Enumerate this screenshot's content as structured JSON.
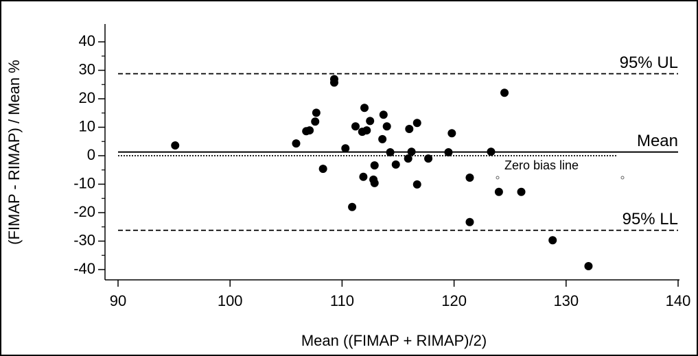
{
  "chart_data": {
    "type": "scatter",
    "x_label": "Mean ((FIMAP + RIMAP)/2)",
    "y_label": "(FIMAP - RIMAP) / Mean %",
    "xlim": [
      90,
      140
    ],
    "xticks": [
      90,
      100,
      110,
      120,
      130,
      140
    ],
    "ylim": [
      -40,
      40
    ],
    "yticks": [
      -40,
      -30,
      -20,
      -10,
      0,
      10,
      20,
      30,
      40
    ],
    "color": "#000000",
    "series": [
      {
        "x": [
          95.1,
          105.9,
          106.8,
          107.1,
          107.6,
          107.7,
          108.3,
          109.3,
          109.3,
          110.3,
          110.9,
          111.2,
          111.8,
          112.0,
          111.9,
          112.2,
          112.5,
          112.8,
          112.9,
          112.9,
          113.6,
          113.7,
          114.0,
          114.3,
          114.8,
          115.9,
          116.0,
          116.2,
          116.7,
          116.7,
          117.7,
          119.5,
          119.8,
          121.4,
          121.4,
          123.3,
          124.0,
          124.5,
          126.0,
          128.8,
          132.0
        ],
        "values": [
          3.6,
          4.3,
          8.6,
          8.9,
          12.0,
          15.1,
          -4.6,
          26.9,
          25.7,
          2.6,
          -18.0,
          10.3,
          8.4,
          16.8,
          -7.4,
          8.9,
          12.2,
          -8.4,
          -9.6,
          -3.4,
          5.8,
          14.4,
          10.3,
          1.2,
          -3.1,
          -1.0,
          9.4,
          1.4,
          11.5,
          -10.1,
          -1.0,
          1.2,
          7.9,
          -7.7,
          -23.3,
          1.4,
          -12.7,
          22.1,
          -12.7,
          -29.7,
          -38.8
        ]
      }
    ],
    "reference_lines": [
      {
        "label": "95% UL",
        "value": 28.8,
        "style": "dashed"
      },
      {
        "label": "Mean",
        "value": 1.3,
        "style": "solid"
      },
      {
        "label": "Zero bias line",
        "value": 0,
        "style": "dotted"
      },
      {
        "label": "95% LL",
        "value": -26.2,
        "style": "dashed"
      }
    ]
  }
}
